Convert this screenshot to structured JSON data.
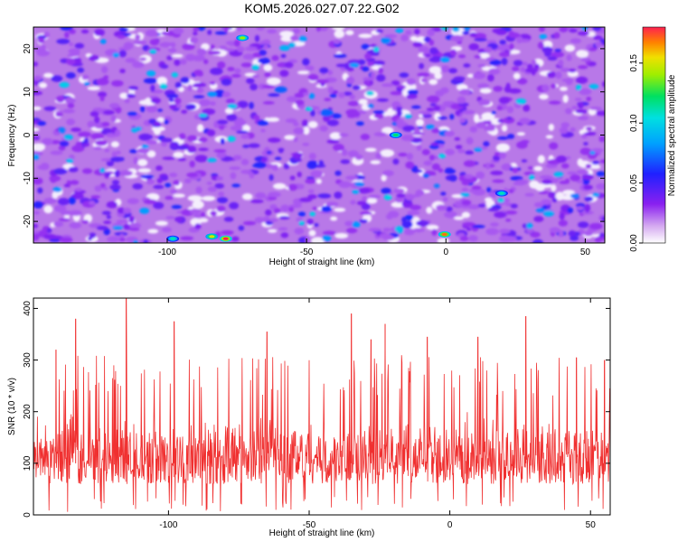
{
  "figure_title": "KOM5.2026.027.07.22.G02",
  "chart_data": [
    {
      "type": "heatmap",
      "title": "KOM5.2026.027.07.22.G02",
      "xlabel": "Height of straight line (km)",
      "ylabel": "Frequency (Hz)",
      "xlim": [
        -148,
        57
      ],
      "ylim": [
        -25,
        25
      ],
      "x_ticks": [
        -100,
        -50,
        0,
        50
      ],
      "x_tick_labels": [
        "-100",
        "-50",
        "0",
        "50"
      ],
      "y_ticks": [
        -20,
        -10,
        0,
        10,
        20
      ],
      "y_tick_labels": [
        "-20",
        "-10",
        "0",
        "10",
        "20"
      ],
      "colorbar": {
        "label": "Normalized spectral amplitude",
        "range": [
          0.0,
          0.18
        ],
        "ticks": [
          0.0,
          0.05,
          0.1,
          0.15
        ],
        "tick_labels": [
          "0.00",
          "0.05",
          "0.10",
          "0.15"
        ],
        "colormap": "rainbow (white-purple-blue-cyan-green-yellow-red)"
      },
      "noise_field": "dense speckle, mostly 0.01-0.06",
      "peaks": [
        {
          "x": -79,
          "y": -24,
          "value": 0.18
        },
        {
          "x": -84,
          "y": -23.5,
          "value": 0.15
        },
        {
          "x": -0.5,
          "y": -23,
          "value": 0.17
        },
        {
          "x": -18,
          "y": 0,
          "value": 0.12
        },
        {
          "x": 20,
          "y": -13.5,
          "value": 0.11
        },
        {
          "x": -73,
          "y": 22.5,
          "value": 0.14
        },
        {
          "x": -98,
          "y": -24,
          "value": 0.11
        }
      ]
    },
    {
      "type": "line",
      "title": "",
      "xlabel": "Height of straight line (km)",
      "ylabel": "SNR (10 * v/v)",
      "xlim": [
        -148,
        57
      ],
      "ylim": [
        0,
        420
      ],
      "x_ticks": [
        -100,
        -50,
        0,
        50
      ],
      "x_tick_labels": [
        "-100",
        "-50",
        "0",
        "50"
      ],
      "y_ticks": [
        0,
        100,
        200,
        300,
        400
      ],
      "y_tick_labels": [
        "0",
        "100",
        "200",
        "300",
        "400"
      ],
      "series": [
        {
          "color": "#f03030",
          "approx_mean": 120,
          "approx_range": [
            5,
            420
          ],
          "spikes": [
            {
              "x": -115,
              "y": 420
            },
            {
              "x": -140,
              "y": 320
            },
            {
              "x": -133,
              "y": 380
            },
            {
              "x": -98,
              "y": 375
            },
            {
              "x": -65,
              "y": 355
            },
            {
              "x": -35,
              "y": 390
            },
            {
              "x": -28,
              "y": 340
            },
            {
              "x": -23,
              "y": 370
            },
            {
              "x": -8,
              "y": 345
            },
            {
              "x": 10,
              "y": 345
            },
            {
              "x": 27,
              "y": 385
            },
            {
              "x": 45,
              "y": 305
            },
            {
              "x": 55,
              "y": 300
            }
          ]
        }
      ]
    }
  ]
}
